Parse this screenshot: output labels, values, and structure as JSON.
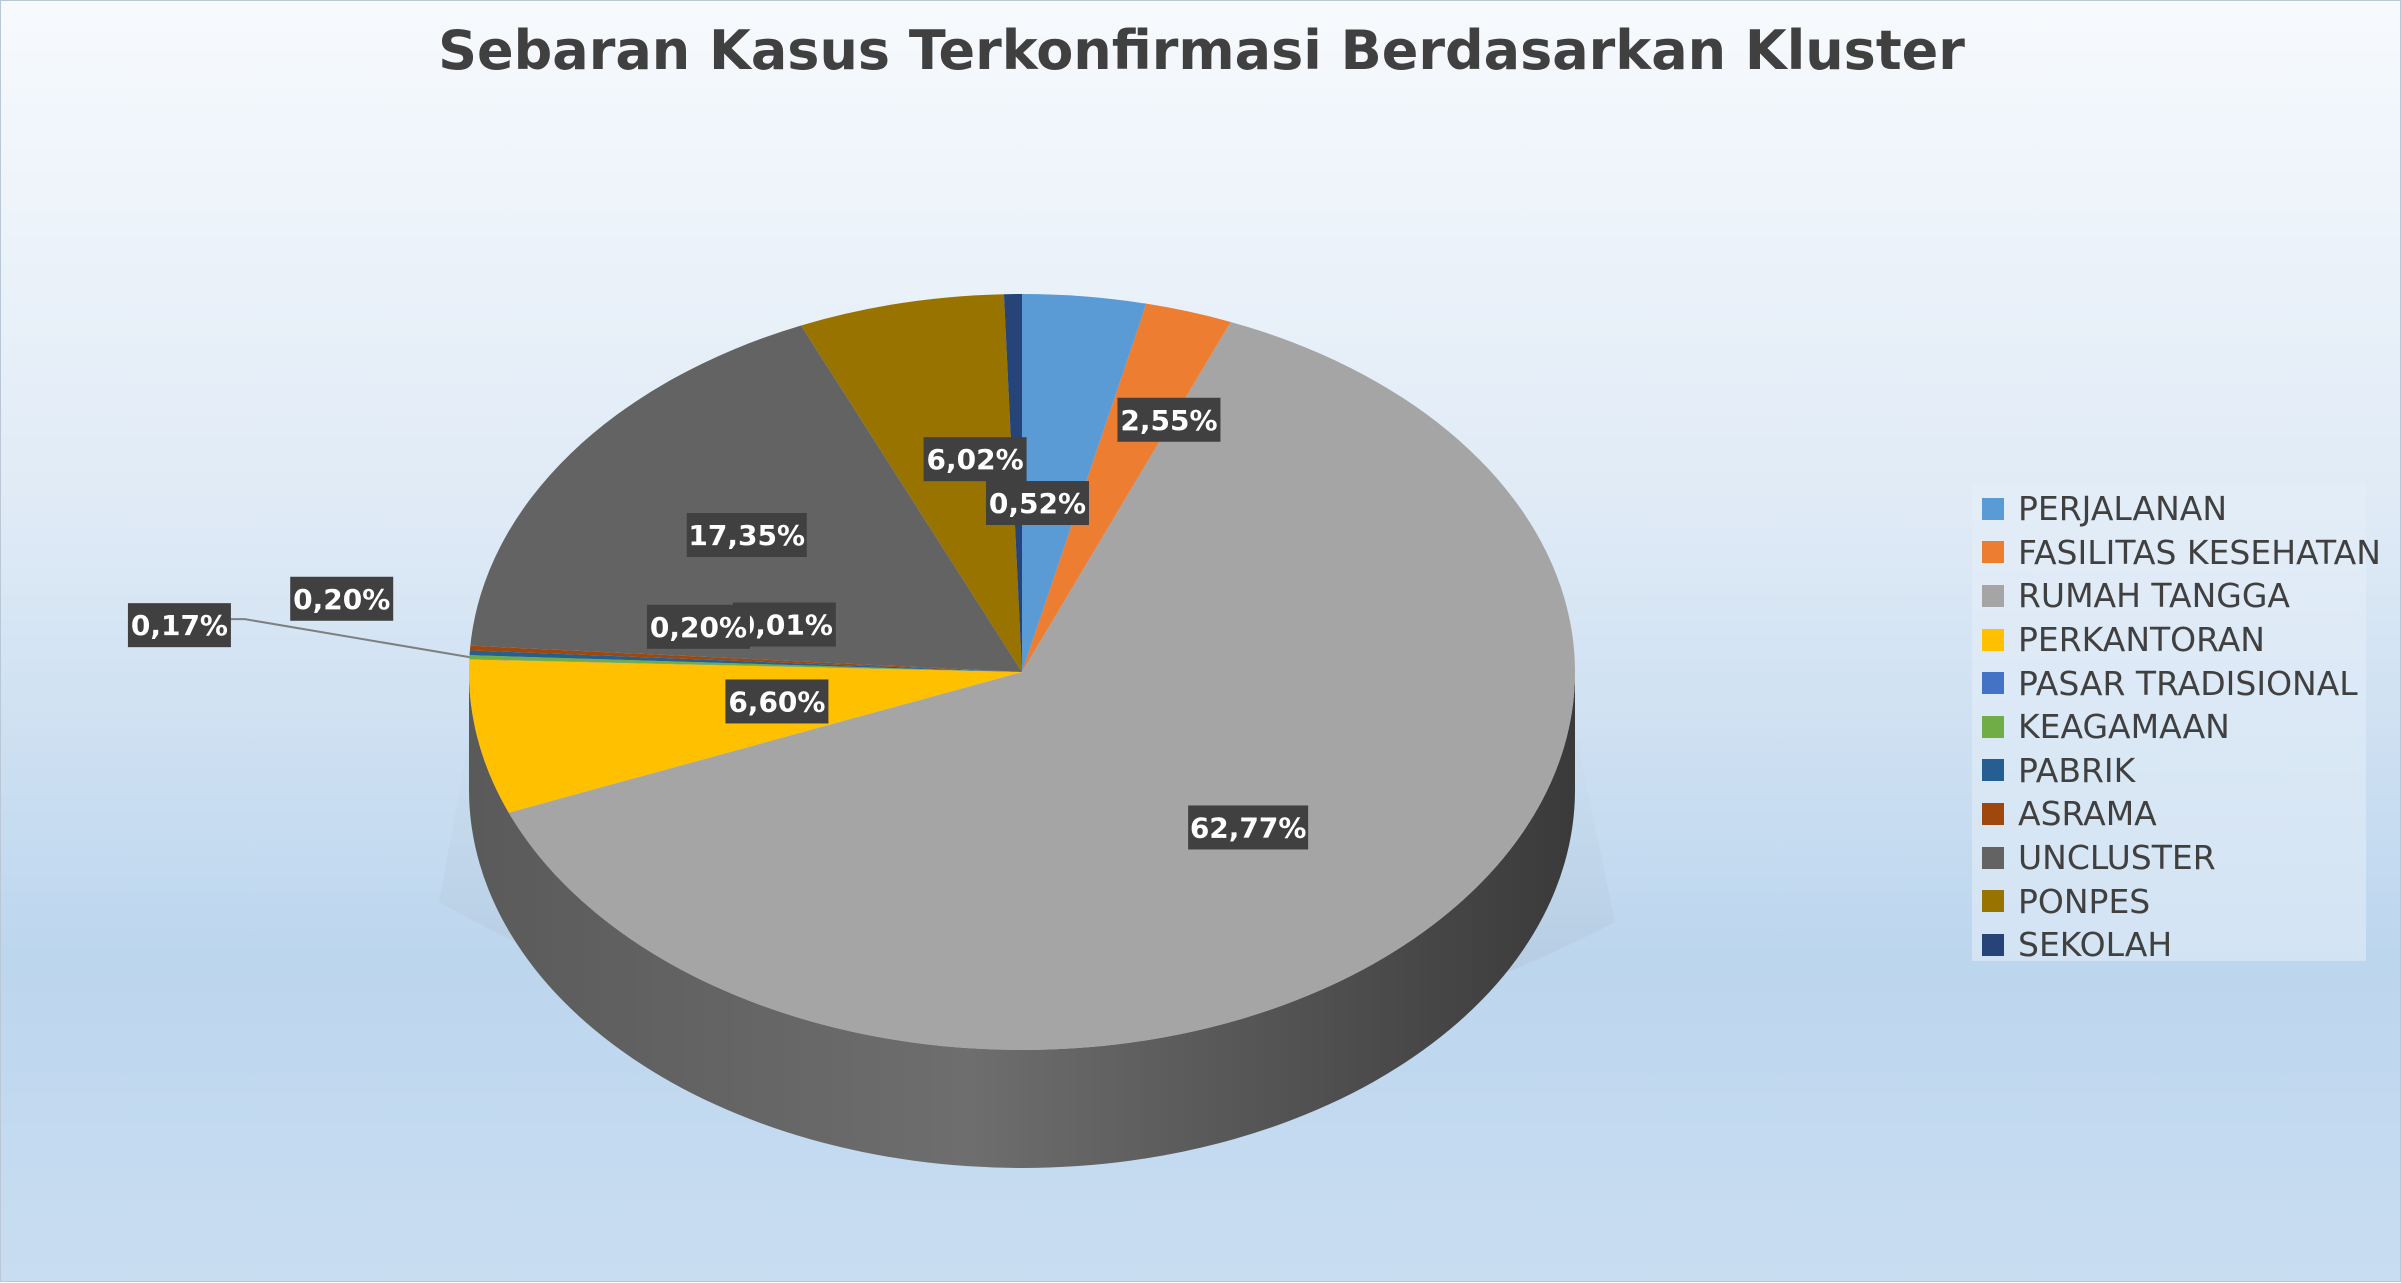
{
  "chart_data": {
    "type": "pie",
    "title": "Sebaran Kasus Terkonfirmasi Berdasarkan Kluster",
    "legend_position": "right",
    "slices": [
      {
        "name": "PERJALANAN",
        "value": 3.61,
        "color": "#5b9bd5",
        "label": ""
      },
      {
        "name": "FASILITAS KESEHATAN",
        "value": 2.55,
        "color": "#ed7d31",
        "label": "2,55%"
      },
      {
        "name": "RUMAH TANGGA",
        "value": 62.77,
        "color": "#a5a5a5",
        "label": "62,77%"
      },
      {
        "name": "PERKANTORAN",
        "value": 6.6,
        "color": "#ffc000",
        "label": "6,60%"
      },
      {
        "name": "PASAR TRADISIONAL",
        "value": 0.01,
        "color": "#4472c4",
        "label": "0,01%"
      },
      {
        "name": "KEAGAMAAN",
        "value": 0.17,
        "color": "#70ad47",
        "label": "0,17%"
      },
      {
        "name": "PABRIK",
        "value": 0.2,
        "color": "#255e91",
        "label": "0,20%"
      },
      {
        "name": "ASRAMA",
        "value": 0.2,
        "color": "#9e480e",
        "label": "0,20%"
      },
      {
        "name": "UNCLUSTER",
        "value": 17.35,
        "color": "#636363",
        "label": "17,35%"
      },
      {
        "name": "PONPES",
        "value": 6.02,
        "color": "#997300",
        "label": "6,02%"
      },
      {
        "name": "SEKOLAH",
        "value": 0.52,
        "color": "#264478",
        "label": "0,52%"
      }
    ]
  }
}
